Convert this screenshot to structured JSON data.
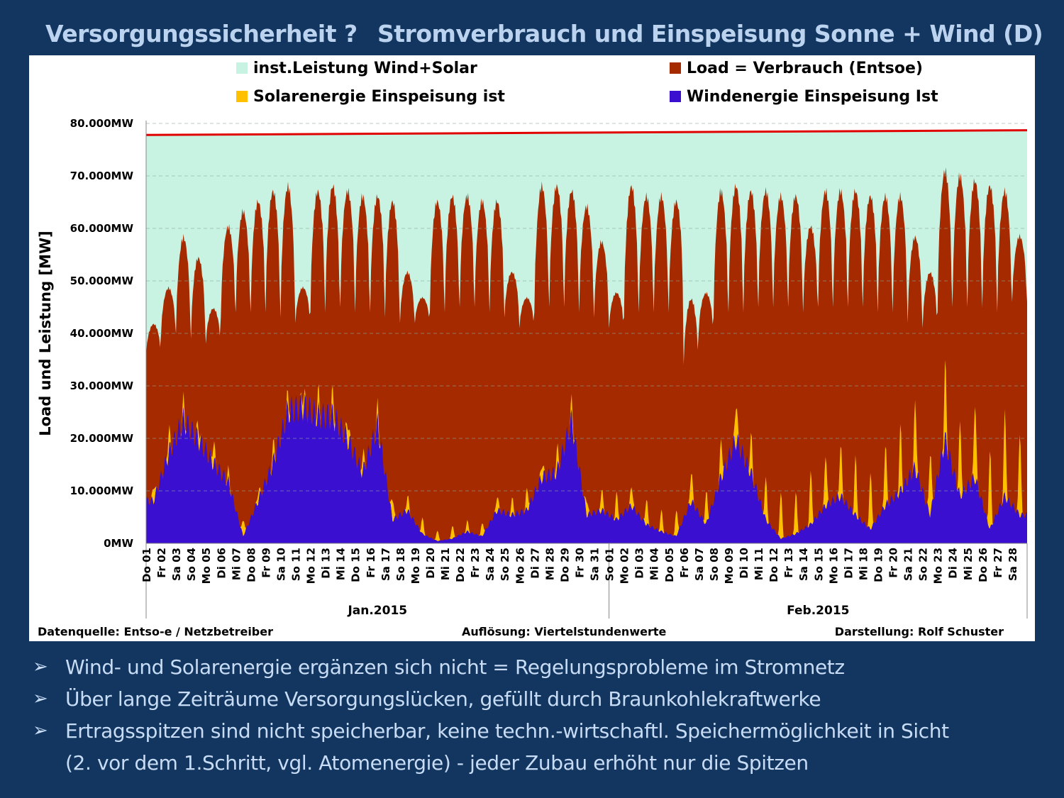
{
  "slide": {
    "title_left": "Versorgungssicherheit ?",
    "title_right": "Stromverbrauch und Einspeisung Sonne + Wind (D)",
    "bullets": [
      "Wind- und Solarenergie ergänzen sich nicht = Regelungsprobleme im Stromnetz",
      "Über lange Zeiträume Versorgungslücken, gefüllt durch Braunkohlekraftwerke",
      "Ertragsspitzen sind nicht speicherbar, keine techn.-wirtschaftl. Speichermöglichkeit in Sicht"
    ],
    "bullet_continuation": "(2. vor dem 1.Schritt, vgl. Atomenergie) -  jeder Zubau erhöht nur die Spitzen",
    "bullet_glyph": "➢"
  },
  "chart_data": {
    "type": "area",
    "ylabel": "Load und Leistung  [MW]",
    "ylim": [
      0,
      80000
    ],
    "y_ticks": [
      "0MW",
      "10.000MW",
      "20.000MW",
      "30.000MW",
      "40.000MW",
      "50.000MW",
      "60.000MW",
      "70.000MW",
      "80.000MW"
    ],
    "legend": [
      {
        "key": "installed",
        "label": "inst.Leistung Wind+Solar",
        "color": "#c8f2e2"
      },
      {
        "key": "load",
        "label": "Load =  Verbrauch (Entsoe)",
        "color": "#a52a00"
      },
      {
        "key": "solar",
        "label": "Solarenergie Einspeisung ist",
        "color": "#ffc000"
      },
      {
        "key": "wind",
        "label": "Windenergie Einspeisung Ist",
        "color": "#3a0fd0"
      }
    ],
    "installed_capacity": {
      "start": 77800,
      "end": 78700,
      "line_color": "#e00000"
    },
    "day_labels": [
      "Do 01",
      "Fr 02",
      "Sa 03",
      "So 04",
      "Mo 05",
      "Di 06",
      "Mi 07",
      "Do 08",
      "Fr 09",
      "Sa 10",
      "So 11",
      "Mo 12",
      "Di 13",
      "Mi 14",
      "Do 15",
      "Fr 16",
      "Sa 17",
      "So 18",
      "Mo 19",
      "Di 20",
      "Mi 21",
      "Do 22",
      "Fr 23",
      "Sa 24",
      "So 25",
      "Mo 26",
      "Di 27",
      "Mi 28",
      "Do 29",
      "Fr 30",
      "Sa 31",
      "So 01",
      "Mo 02",
      "Di 03",
      "Mi 04",
      "Do 05",
      "Fr 06",
      "Sa 07",
      "So 08",
      "Mo 09",
      "Di 10",
      "Mi 11",
      "Do 12",
      "Fr 13",
      "Sa 14",
      "So 15",
      "Mo 16",
      "Di 17",
      "Mi 18",
      "Do 19",
      "Fr 20",
      "Sa 21",
      "So 22",
      "Mo 23",
      "Di 24",
      "Mi 25",
      "Do 26",
      "Fr 27",
      "Sa 28"
    ],
    "months": [
      "Jan.2015",
      "Feb.2015"
    ],
    "load_daily_peak": [
      42000,
      49000,
      59000,
      55000,
      45000,
      61000,
      64000,
      66000,
      68000,
      69000,
      49000,
      68000,
      69000,
      68000,
      67000,
      67000,
      66000,
      52000,
      47000,
      66000,
      67000,
      67000,
      66000,
      66000,
      52000,
      47000,
      69000,
      69000,
      68000,
      65000,
      58000,
      48000,
      69000,
      67000,
      67000,
      66000,
      47000,
      48000,
      68000,
      69000,
      68000,
      68000,
      67000,
      67000,
      61000,
      68000,
      68000,
      68000,
      67000,
      67000,
      67000,
      59000,
      52000,
      72000,
      71000,
      70000,
      69000,
      68000,
      59000
    ],
    "load_daily_min": [
      36000,
      40000,
      40000,
      39000,
      38000,
      43000,
      44000,
      44000,
      44000,
      43000,
      42000,
      44000,
      44000,
      45000,
      44000,
      44000,
      43000,
      42000,
      42000,
      44000,
      44000,
      45000,
      45000,
      44000,
      43000,
      41000,
      44000,
      45000,
      45000,
      44000,
      43000,
      41000,
      43000,
      44000,
      44000,
      44000,
      34000,
      40000,
      43000,
      44000,
      44000,
      45000,
      45000,
      45000,
      44000,
      45000,
      45000,
      45000,
      45000,
      44000,
      44000,
      42000,
      41000,
      44000,
      45000,
      45000,
      45000,
      44000,
      46000
    ],
    "wind_daily": [
      9000,
      19000,
      26000,
      22000,
      17000,
      13000,
      1500,
      9000,
      17000,
      28000,
      29000,
      27000,
      27000,
      22000,
      15000,
      25000,
      5000,
      7000,
      2000,
      500,
      1000,
      2500,
      1500,
      7000,
      6000,
      7000,
      14000,
      15000,
      26000,
      6000,
      7000,
      5000,
      8000,
      4000,
      2500,
      1500,
      9000,
      4000,
      14000,
      22000,
      15000,
      5000,
      1000,
      2000,
      4000,
      8000,
      10000,
      6000,
      3000,
      8000,
      11000,
      16000,
      6000,
      22000,
      10000,
      14000,
      3000,
      10000,
      6000
    ],
    "solar_daily_peak": [
      3000,
      4000,
      3000,
      3000,
      4000,
      2000,
      3000,
      2000,
      3000,
      3000,
      3000,
      4000,
      4000,
      4000,
      3000,
      3000,
      4000,
      3000,
      3000,
      2000,
      2500,
      2000,
      2500,
      3000,
      3000,
      4000,
      3000,
      4000,
      3000,
      3000,
      4000,
      5000,
      4000,
      5000,
      4000,
      5000,
      6000,
      6000,
      7000,
      8000,
      7000,
      8000,
      9000,
      8000,
      10000,
      10000,
      10000,
      11000,
      11000,
      12000,
      12000,
      13000,
      12000,
      14000,
      14000,
      15000,
      15000,
      16000,
      16000
    ]
  },
  "chart_text": {
    "source": "Datenquelle:  Entso-e  / Netzbetreiber",
    "resolution": "Auflösung: Viertelstundenwerte",
    "author": "Darstellung: Rolf Schuster"
  }
}
